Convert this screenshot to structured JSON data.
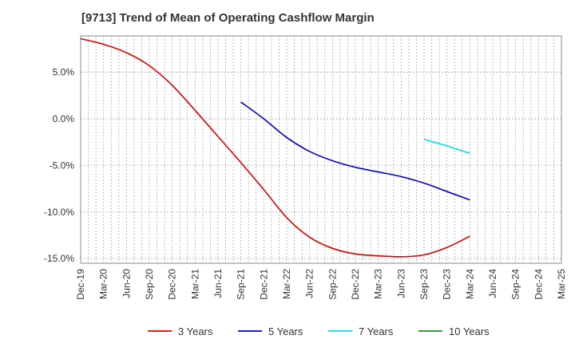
{
  "chart_data": {
    "type": "line",
    "title": "[9713]  Trend of Mean of Operating Cashflow Margin",
    "xlabel": "",
    "ylabel": "",
    "x_ticks": [
      "Dec-19",
      "Mar-20",
      "Jun-20",
      "Sep-20",
      "Dec-20",
      "Mar-21",
      "Jun-21",
      "Sep-21",
      "Dec-21",
      "Mar-22",
      "Jun-22",
      "Sep-22",
      "Dec-22",
      "Mar-23",
      "Jun-23",
      "Sep-23",
      "Dec-23",
      "Mar-24",
      "Jun-24",
      "Sep-24",
      "Dec-24",
      "Mar-25"
    ],
    "y_ticks": [
      5.0,
      0.0,
      -5.0,
      -10.0,
      -15.0
    ],
    "y_tick_labels": [
      "5.0%",
      "0.0%",
      "-5.0%",
      "-10.0%",
      "-15.0%"
    ],
    "ylim": [
      -15.5,
      8.9
    ],
    "grid": true,
    "legend_position": "bottom",
    "series": [
      {
        "name": "3 Years",
        "color": "#dd0000",
        "points": [
          [
            "Dec-19",
            8.6
          ],
          [
            "Mar-20",
            8.0
          ],
          [
            "Jun-20",
            7.1
          ],
          [
            "Sep-20",
            5.7
          ],
          [
            "Dec-20",
            3.6
          ],
          [
            "Mar-21",
            0.9
          ],
          [
            "Jun-21",
            -1.9
          ],
          [
            "Sep-21",
            -4.7
          ],
          [
            "Dec-21",
            -7.6
          ],
          [
            "Mar-22",
            -10.6
          ],
          [
            "Jun-22",
            -12.7
          ],
          [
            "Sep-22",
            -13.9
          ],
          [
            "Dec-22",
            -14.5
          ],
          [
            "Mar-23",
            -14.7
          ],
          [
            "Jun-23",
            -14.8
          ],
          [
            "Sep-23",
            -14.6
          ],
          [
            "Dec-23",
            -13.8
          ],
          [
            "Mar-24",
            -12.6
          ]
        ]
      },
      {
        "name": "5 Years",
        "color": "#0000cc",
        "points": [
          [
            "Sep-21",
            1.8
          ],
          [
            "Dec-21",
            0.0
          ],
          [
            "Mar-22",
            -2.0
          ],
          [
            "Jun-22",
            -3.5
          ],
          [
            "Sep-22",
            -4.5
          ],
          [
            "Dec-22",
            -5.2
          ],
          [
            "Mar-23",
            -5.7
          ],
          [
            "Jun-23",
            -6.2
          ],
          [
            "Sep-23",
            -6.9
          ],
          [
            "Dec-23",
            -7.8
          ],
          [
            "Mar-24",
            -8.7
          ]
        ]
      },
      {
        "name": "7 Years",
        "color": "#00e5ee",
        "points": [
          [
            "Sep-23",
            -2.2
          ],
          [
            "Dec-23",
            -2.9
          ],
          [
            "Mar-24",
            -3.7
          ]
        ]
      },
      {
        "name": "10 Years",
        "color": "#228b22",
        "points": []
      }
    ]
  }
}
